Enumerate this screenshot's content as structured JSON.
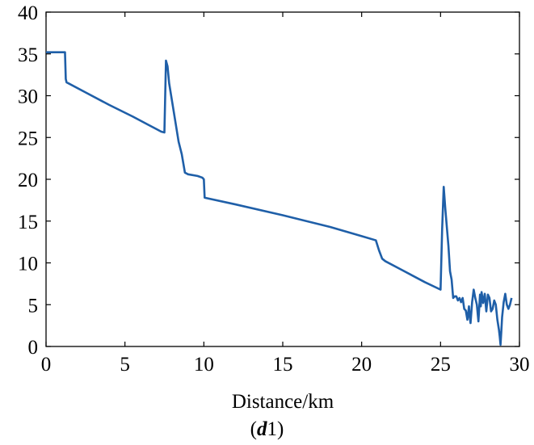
{
  "chart_data": {
    "type": "line",
    "title": "",
    "xlabel": "Distance/km",
    "ylabel": "",
    "xlim": [
      0,
      30
    ],
    "ylim": [
      0,
      40
    ],
    "xticks": [
      0,
      5,
      10,
      15,
      20,
      25,
      30
    ],
    "yticks": [
      0,
      5,
      10,
      15,
      20,
      25,
      30,
      35,
      40
    ],
    "grid": false,
    "line_color": "#1f5fa8",
    "series": [
      {
        "x": [
          0,
          1.2,
          1.25,
          1.3,
          2.5,
          4.0,
          5.5,
          6.5,
          7.0,
          7.3,
          7.5,
          7.6,
          7.7,
          7.8,
          8.1,
          8.4,
          8.6,
          8.8,
          9.0,
          9.6,
          9.9,
          10.0,
          10.05,
          12,
          15,
          18,
          20,
          20.9,
          21.1,
          21.3,
          21.5,
          22.5,
          24,
          25.0,
          25.1,
          25.2,
          25.3,
          25.5,
          25.6,
          25.7,
          25.8,
          25.9,
          26.0,
          26.1,
          26.2,
          26.3,
          26.4,
          26.5,
          26.6,
          26.7,
          26.8,
          26.85,
          26.9,
          27.0,
          27.1,
          27.2,
          27.3,
          27.35,
          27.4,
          27.5,
          27.55,
          27.6,
          27.7,
          27.8,
          27.9,
          28.0,
          28.1,
          28.2,
          28.3,
          28.4,
          28.5,
          28.6,
          28.7,
          28.75,
          28.8,
          28.85,
          28.9,
          29.0,
          29.1,
          29.2,
          29.3,
          29.4,
          29.5
        ],
        "y": [
          35.2,
          35.2,
          32.0,
          31.6,
          30.4,
          28.9,
          27.5,
          26.5,
          26.0,
          25.7,
          25.6,
          34.2,
          33.5,
          31.5,
          28.0,
          24.5,
          23.0,
          20.8,
          20.6,
          20.4,
          20.2,
          20.0,
          17.8,
          17.0,
          15.7,
          14.3,
          13.2,
          12.7,
          11.5,
          10.5,
          10.2,
          9.2,
          7.7,
          6.8,
          14.0,
          19.1,
          16.5,
          12.0,
          9.0,
          8.0,
          5.8,
          6.0,
          6.0,
          5.5,
          5.8,
          5.3,
          5.8,
          4.5,
          4.3,
          3.2,
          4.8,
          3.5,
          2.8,
          5.3,
          6.8,
          5.8,
          5.0,
          4.0,
          3.0,
          6.2,
          4.8,
          6.5,
          5.2,
          6.3,
          4.2,
          6.2,
          5.8,
          4.2,
          4.5,
          5.5,
          5.0,
          3.2,
          2.0,
          1.2,
          0.2,
          1.8,
          3.5,
          5.3,
          6.3,
          5.0,
          4.5,
          5.0,
          5.8
        ]
      }
    ],
    "caption_label": "d",
    "caption_subscript": "1"
  }
}
